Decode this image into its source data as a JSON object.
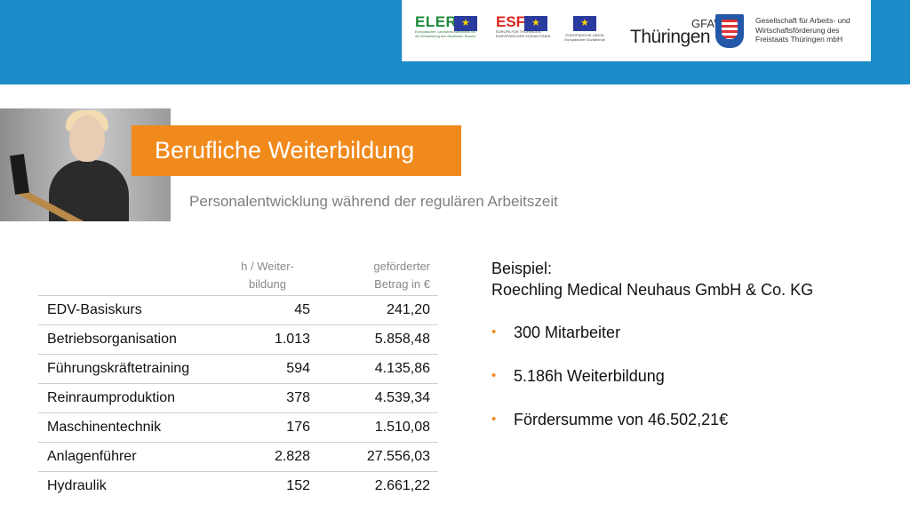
{
  "header": {
    "eler_logo_text": "ELER",
    "eler_sub": "Europäischer Landwirtschaftsfonds für die Entwicklung des ländlichen Raums",
    "esf_logo_text": "ESF",
    "esf_sub": "EUROPA FÜR THÜRINGEN · EUROPÄISCHER SOZIALFONDS",
    "eu_sub": "EUROPÄISCHE UNION Europäischer Sozialfonds",
    "gfaw_word": "GFAW",
    "thueringen_word": "Thüringen",
    "gfaw_text_1": "Gesellschaft für Arbeits- und",
    "gfaw_text_2": "Wirtschaftsförderung des",
    "gfaw_text_3": "Freistaats Thüringen mbH"
  },
  "title": "Berufliche Weiterbildung",
  "subtitle": "Personalentwicklung während der regulären Arbeitszeit",
  "table": {
    "col2_header_line1": "h / Weiter-",
    "col2_header_line2": "bildung",
    "col3_header_line1": "geförderter",
    "col3_header_line2": "Betrag in €",
    "rows": [
      {
        "name": "EDV-Basiskurs",
        "hours": "45",
        "amount": "241,20"
      },
      {
        "name": "Betriebsorganisation",
        "hours": "1.013",
        "amount": "5.858,48"
      },
      {
        "name": "Führungskräftetraining",
        "hours": "594",
        "amount": "4.135,86"
      },
      {
        "name": "Reinraumproduktion",
        "hours": "378",
        "amount": "4.539,34"
      },
      {
        "name": "Maschinentechnik",
        "hours": "176",
        "amount": "1.510,08"
      },
      {
        "name": "Anlagenführer",
        "hours": "2.828",
        "amount": "27.556,03"
      },
      {
        "name": "Hydraulik",
        "hours": "152",
        "amount": "2.661,22"
      }
    ]
  },
  "example": {
    "label": "Beispiel:",
    "company": "Roechling Medical Neuhaus GmbH & Co. KG",
    "bullets": [
      "300 Mitarbeiter",
      "5.186h Weiterbildung",
      "Fördersumme von 46.502,21€"
    ]
  },
  "colors": {
    "header_blue": "#1b8cc8",
    "accent_orange": "#f18a1c"
  }
}
